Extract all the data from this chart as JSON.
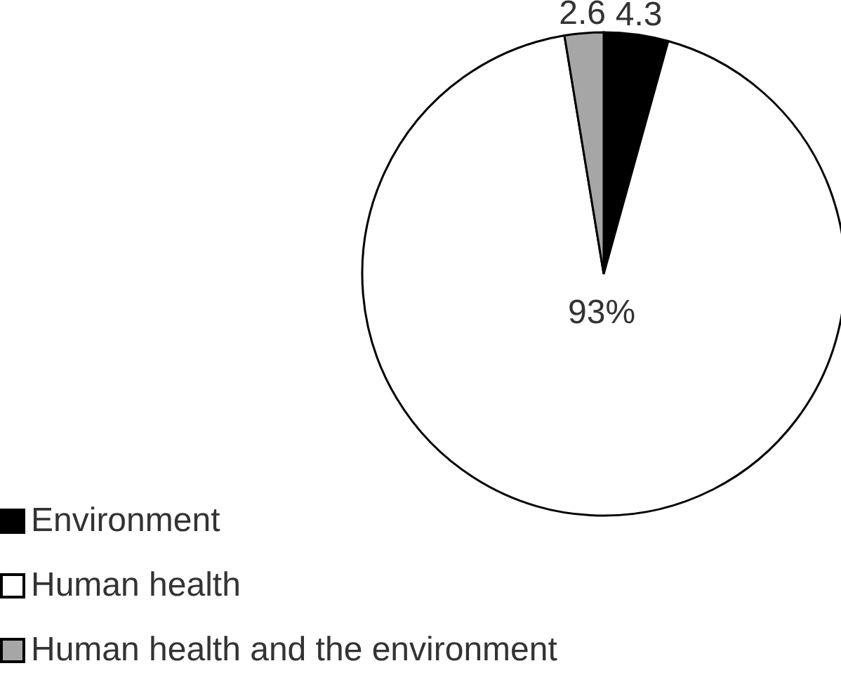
{
  "chart_data": {
    "type": "pie",
    "categories": [
      "Environment",
      "Human health",
      "Human health and the environment"
    ],
    "values": [
      4.3,
      93,
      2.6
    ],
    "colors": [
      "#000000",
      "#ffffff",
      "#a6a6a6"
    ],
    "value_labels": [
      "4.3",
      "93%",
      "2.6"
    ],
    "legend": "bottom left"
  }
}
